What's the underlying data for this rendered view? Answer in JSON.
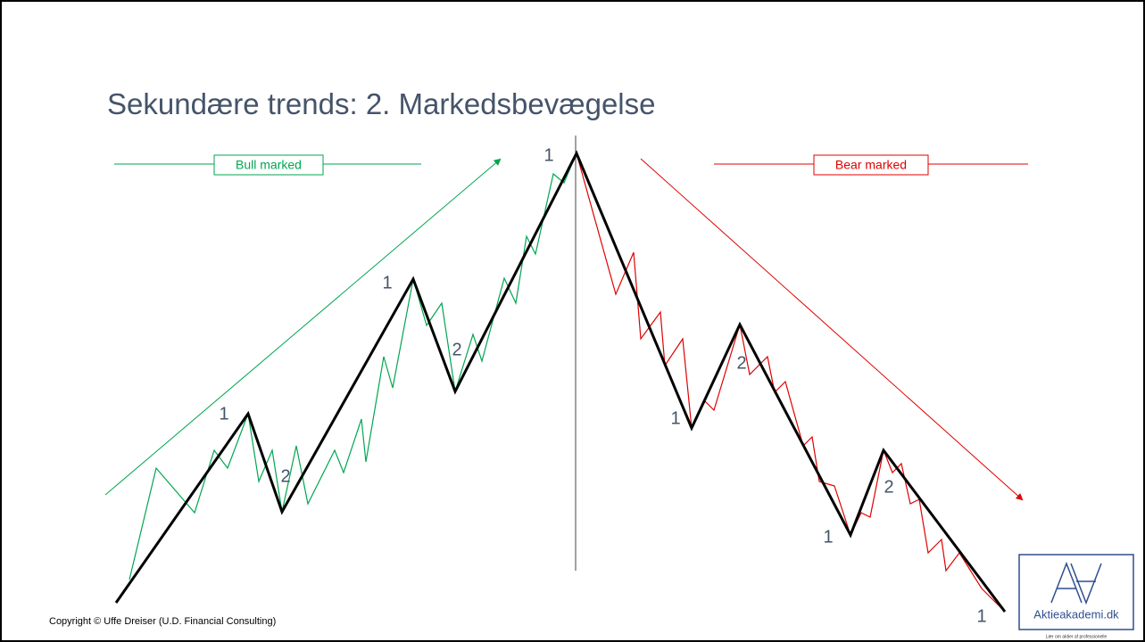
{
  "title": "Sekundære trends: 2. Markedsbevægelse",
  "bull_label": "Bull marked",
  "bear_label": "Bear marked",
  "wave_labels": [
    "1",
    "1",
    "1",
    "1",
    "1",
    "1",
    "2",
    "2",
    "2",
    "2"
  ],
  "copyright": "Copyright © Uffe Dreiser (U.D. Financial Consulting)",
  "logo": {
    "name": "Aktieakademi.dk",
    "tagline": "Lær om aktier af professionelle"
  }
}
